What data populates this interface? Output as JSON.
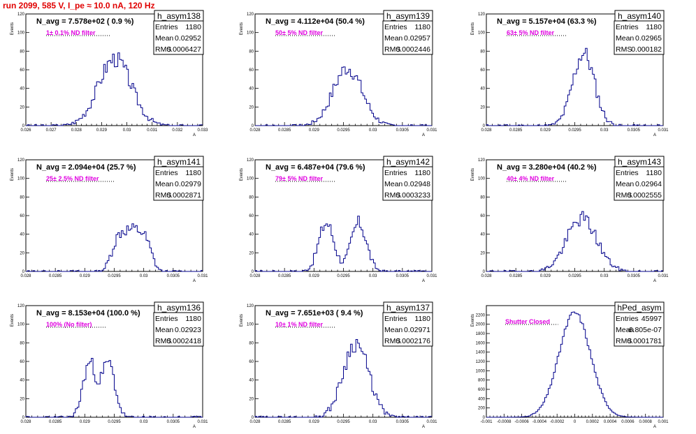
{
  "header": {
    "run_title": "run 2099,   585 V, I_pe ≈ 10.0 nA, 120 Hz"
  },
  "stat_labels": {
    "entries": "Entries",
    "mean": "Mean",
    "rms": "RMS"
  },
  "axis_titles": {
    "y": "Events",
    "x": "A"
  },
  "chart_data": [
    {
      "type": "bar",
      "name": "h_asym138",
      "annotation": "N_avg = 7.578e+02 ( 0.9 %)",
      "filter": "1± 0.1% ND filter",
      "stats": {
        "entries": "1180",
        "mean": "0.02952",
        "rms": "0.0006427"
      },
      "xlim": [
        0.026,
        0.033
      ],
      "ylim": [
        0,
        120
      ],
      "xticks": [
        "0.026",
        "0.027",
        "0.028",
        "0.029",
        "0.03",
        "0.031",
        "0.032",
        "0.033"
      ],
      "yticks": [
        "0",
        "20",
        "40",
        "60",
        "80",
        "100",
        "120"
      ],
      "center": 0.02952,
      "sigma": 0.00065,
      "peak": 72,
      "seed": 3
    },
    {
      "type": "bar",
      "name": "h_asym139",
      "annotation": "N_avg = 4.112e+04 (50.4 %)",
      "filter": "50± 5% ND filter",
      "stats": {
        "entries": "1180",
        "mean": "0.02957",
        "rms": "0.0002446"
      },
      "xlim": [
        0.028,
        0.031
      ],
      "ylim": [
        0,
        120
      ],
      "xticks": [
        "0.028",
        "0.0285",
        "0.029",
        "0.0295",
        "0.03",
        "0.0305",
        "0.031"
      ],
      "yticks": [
        "0",
        "20",
        "40",
        "60",
        "80",
        "100",
        "120"
      ],
      "center": 0.02957,
      "sigma": 0.000245,
      "peak": 62,
      "seed": 7
    },
    {
      "type": "bar",
      "name": "h_asym140",
      "annotation": "N_avg = 5.157e+04 (63.3 %)",
      "filter": "63± 5% ND filter",
      "stats": {
        "entries": "1180",
        "mean": "0.02965",
        "rms": "0.000182"
      },
      "xlim": [
        0.028,
        0.031
      ],
      "ylim": [
        0,
        120
      ],
      "xticks": [
        "0.028",
        "0.0285",
        "0.029",
        "0.0295",
        "0.03",
        "0.0305",
        "0.031"
      ],
      "yticks": [
        "0",
        "20",
        "40",
        "60",
        "80",
        "100",
        "120"
      ],
      "center": 0.02965,
      "sigma": 0.000182,
      "peak": 78,
      "seed": 11
    },
    {
      "type": "bar",
      "name": "h_asym141",
      "annotation": "N_avg = 2.094e+04 (25.7 %)",
      "filter": "25± 2.5% ND filter",
      "stats": {
        "entries": "1180",
        "mean": "0.02979",
        "rms": "0.0002871"
      },
      "xlim": [
        0.028,
        0.031
      ],
      "ylim": [
        0,
        120
      ],
      "xticks": [
        "0.028",
        "0.0285",
        "0.029",
        "0.0295",
        "0.03",
        "0.0305",
        "0.031"
      ],
      "yticks": [
        "0",
        "20",
        "40",
        "60",
        "80",
        "100",
        "120"
      ],
      "center": 0.02979,
      "sigma": 0.00027,
      "peak": 45,
      "seed": 13,
      "flat": true
    },
    {
      "type": "bar",
      "name": "h_asym142",
      "annotation": "N_avg = 6.487e+04 (79.6 %)",
      "filter": "79± 5% ND filter",
      "stats": {
        "entries": "1180",
        "mean": "0.02948",
        "rms": "0.0003233"
      },
      "xlim": [
        0.028,
        0.031
      ],
      "ylim": [
        0,
        120
      ],
      "xticks": [
        "0.028",
        "0.0285",
        "0.029",
        "0.0295",
        "0.03",
        "0.0305",
        "0.031"
      ],
      "yticks": [
        "0",
        "20",
        "40",
        "60",
        "80",
        "100",
        "120"
      ],
      "center": 0.02948,
      "sigma": 0.00032,
      "peak": 52,
      "seed": 17,
      "bimodal": [
        0.02921,
        0.02976,
        0.00013
      ]
    },
    {
      "type": "bar",
      "name": "h_asym143",
      "annotation": "N_avg = 3.280e+04 (40.2 %)",
      "filter": "40± 4% ND filter",
      "stats": {
        "entries": "1180",
        "mean": "0.02964",
        "rms": "0.0002555"
      },
      "xlim": [
        0.028,
        0.031
      ],
      "ylim": [
        0,
        120
      ],
      "xticks": [
        "0.028",
        "0.0285",
        "0.029",
        "0.0295",
        "0.03",
        "0.0305",
        "0.031"
      ],
      "yticks": [
        "0",
        "20",
        "40",
        "60",
        "80",
        "100",
        "120"
      ],
      "center": 0.02962,
      "sigma": 0.000255,
      "peak": 57,
      "seed": 19
    },
    {
      "type": "bar",
      "name": "h_asym136",
      "annotation": "N_avg = 8.153e+04 (100.0 %)",
      "filter": "100% (No filter)",
      "stats": {
        "entries": "1180",
        "mean": "0.02923",
        "rms": "0.0002418"
      },
      "xlim": [
        0.028,
        0.031
      ],
      "ylim": [
        0,
        120
      ],
      "xticks": [
        "0.028",
        "0.0285",
        "0.029",
        "0.0295",
        "0.03",
        "0.0305",
        "0.031"
      ],
      "yticks": [
        "0",
        "20",
        "40",
        "60",
        "80",
        "100",
        "120"
      ],
      "center": 0.02923,
      "sigma": 0.00024,
      "peak": 58,
      "seed": 23,
      "bimodal": [
        0.02908,
        0.0294,
        0.00011
      ]
    },
    {
      "type": "bar",
      "name": "h_asym137",
      "annotation": "N_avg = 7.651e+03 ( 9.4 %)",
      "filter": "10± 1% ND filter",
      "stats": {
        "entries": "1180",
        "mean": "0.02971",
        "rms": "0.0002176"
      },
      "xlim": [
        0.028,
        0.031
      ],
      "ylim": [
        0,
        120
      ],
      "xticks": [
        "0.028",
        "0.0285",
        "0.029",
        "0.0295",
        "0.03",
        "0.0305",
        "0.031"
      ],
      "yticks": [
        "0",
        "20",
        "40",
        "60",
        "80",
        "100",
        "120"
      ],
      "center": 0.02971,
      "sigma": 0.000215,
      "peak": 80,
      "seed": 29
    },
    {
      "type": "bar",
      "name": "hPed_asym",
      "annotation": "",
      "filter": "Shutter Closed",
      "stats": {
        "entries": "45997",
        "mean": "-6.805e-07",
        "rms": "0.0001781"
      },
      "xlim": [
        -0.001,
        0.001
      ],
      "ylim": [
        0,
        2400
      ],
      "xticks": [
        "-0.001",
        "-0.0008",
        "-0.0006",
        "-0.0004",
        "-0.0002",
        "0",
        "0.0002",
        "0.0004",
        "0.0006",
        "0.0008",
        "0.001"
      ],
      "yticks": [
        "0",
        "200",
        "400",
        "600",
        "800",
        "1000",
        "1200",
        "1400",
        "1600",
        "1800",
        "2000",
        "2200"
      ],
      "center": 0.0,
      "sigma": 0.000178,
      "peak": 2250,
      "seed": 31
    }
  ]
}
